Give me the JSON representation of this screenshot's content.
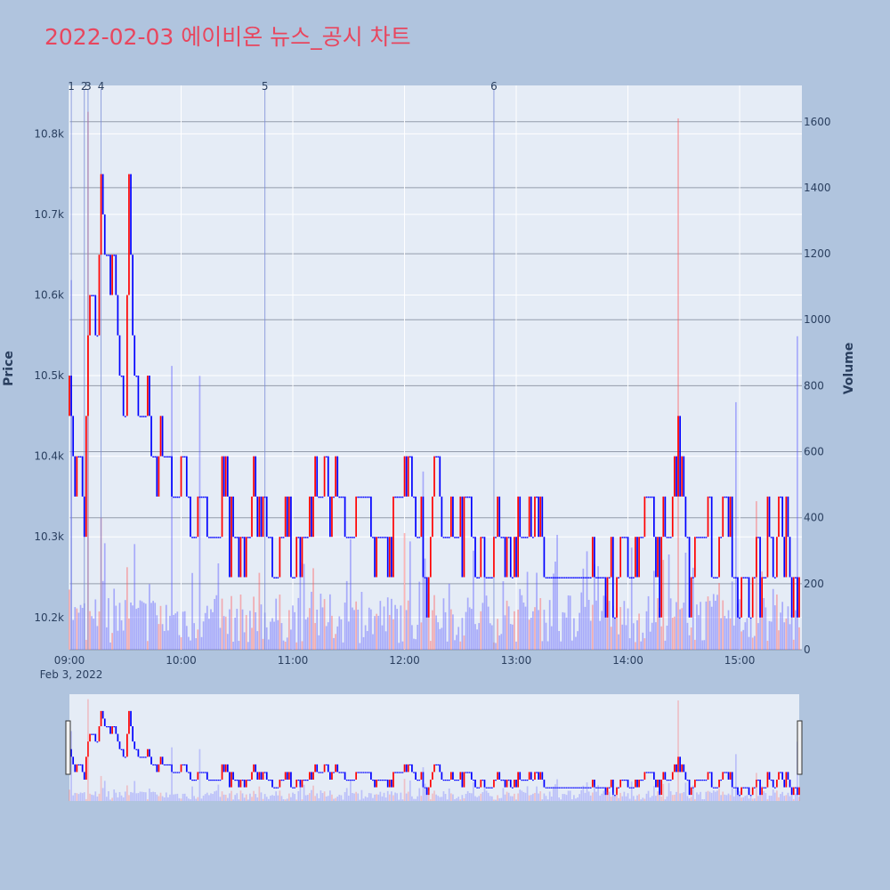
{
  "title": "2022-02-03 에이비온 뉴스_공시 차트",
  "colors": {
    "up": "#ff0000",
    "down": "#0000ff",
    "plot_bg": "#e5ecf6",
    "page_bg": "#b0c4de",
    "title": "#e8465e"
  },
  "chart_data": {
    "type": "candlestick",
    "title": "2022-02-03 에이비온 뉴스_공시 차트",
    "ylabel": "Price",
    "y2label": "Volume",
    "ylim": [
      10160,
      10860
    ],
    "y2lim": [
      0,
      1710
    ],
    "xlim": [
      0,
      392
    ],
    "x_start": "09:00",
    "x_date_label": "Feb 3, 2022",
    "y_ticks": [
      {
        "v": 10200,
        "l": "10.2k"
      },
      {
        "v": 10300,
        "l": "10.3k"
      },
      {
        "v": 10400,
        "l": "10.4k"
      },
      {
        "v": 10500,
        "l": "10.5k"
      },
      {
        "v": 10600,
        "l": "10.6k"
      },
      {
        "v": 10700,
        "l": "10.7k"
      },
      {
        "v": 10800,
        "l": "10.8k"
      }
    ],
    "y2_ticks": [
      {
        "v": 0,
        "l": "0"
      },
      {
        "v": 200,
        "l": "200"
      },
      {
        "v": 400,
        "l": "400"
      },
      {
        "v": 600,
        "l": "600"
      },
      {
        "v": 800,
        "l": "800"
      },
      {
        "v": 1000,
        "l": "1000"
      },
      {
        "v": 1200,
        "l": "1200"
      },
      {
        "v": 1400,
        "l": "1400"
      },
      {
        "v": 1600,
        "l": "1600"
      }
    ],
    "x_ticks": [
      {
        "v": 0,
        "l": "09:00"
      },
      {
        "v": 60,
        "l": "10:00"
      },
      {
        "v": 120,
        "l": "11:00"
      },
      {
        "v": 180,
        "l": "12:00"
      },
      {
        "v": 240,
        "l": "13:00"
      },
      {
        "v": 300,
        "l": "14:00"
      },
      {
        "v": 360,
        "l": "15:00"
      }
    ],
    "events": [
      {
        "label": "1",
        "x": 1
      },
      {
        "label": "2",
        "x": 8
      },
      {
        "label": "3",
        "x": 10
      },
      {
        "label": "4",
        "x": 17
      },
      {
        "label": "5",
        "x": 105
      },
      {
        "label": "6",
        "x": 228
      }
    ],
    "keypoints": [
      [
        0,
        10450
      ],
      [
        3,
        10400
      ],
      [
        6,
        10400
      ],
      [
        8,
        10300
      ],
      [
        10,
        10550
      ],
      [
        12,
        10600
      ],
      [
        15,
        10550
      ],
      [
        17,
        10700
      ],
      [
        19,
        10650
      ],
      [
        24,
        10650
      ],
      [
        27,
        10500
      ],
      [
        30,
        10450
      ],
      [
        32,
        10750
      ],
      [
        35,
        10500
      ],
      [
        38,
        10450
      ],
      [
        42,
        10450
      ],
      [
        45,
        10400
      ],
      [
        54,
        10400
      ],
      [
        57,
        10350
      ],
      [
        62,
        10400
      ],
      [
        65,
        10300
      ],
      [
        72,
        10350
      ],
      [
        75,
        10300
      ],
      [
        80,
        10300
      ],
      [
        84,
        10350
      ],
      [
        87,
        10300
      ],
      [
        97,
        10300
      ],
      [
        99,
        10400
      ],
      [
        101,
        10300
      ],
      [
        106,
        10300
      ],
      [
        110,
        10250
      ],
      [
        116,
        10300
      ],
      [
        121,
        10250
      ],
      [
        125,
        10300
      ],
      [
        132,
        10350
      ],
      [
        140,
        10350
      ],
      [
        145,
        10350
      ],
      [
        150,
        10300
      ],
      [
        158,
        10350
      ],
      [
        165,
        10300
      ],
      [
        172,
        10300
      ],
      [
        176,
        10350
      ],
      [
        182,
        10400
      ],
      [
        186,
        10300
      ],
      [
        193,
        10250
      ],
      [
        196,
        10400
      ],
      [
        200,
        10300
      ],
      [
        212,
        10300
      ],
      [
        220,
        10300
      ],
      [
        225,
        10250
      ],
      [
        230,
        10300
      ],
      [
        240,
        10300
      ],
      [
        250,
        10300
      ],
      [
        258,
        10250
      ],
      [
        265,
        10250
      ],
      [
        275,
        10250
      ],
      [
        289,
        10250
      ],
      [
        293,
        10200
      ],
      [
        296,
        10300
      ],
      [
        302,
        10250
      ],
      [
        306,
        10300
      ],
      [
        311,
        10350
      ],
      [
        315,
        10250
      ],
      [
        320,
        10300
      ],
      [
        326,
        10400
      ],
      [
        329,
        10350
      ],
      [
        333,
        10250
      ],
      [
        338,
        10300
      ],
      [
        340,
        10300
      ],
      [
        348,
        10250
      ],
      [
        352,
        10350
      ],
      [
        357,
        10250
      ],
      [
        360,
        10200
      ],
      [
        363,
        10250
      ],
      [
        366,
        10200
      ],
      [
        369,
        10300
      ],
      [
        372,
        10250
      ],
      [
        375,
        10350
      ],
      [
        378,
        10200
      ],
      [
        381,
        10350
      ],
      [
        392,
        10200
      ]
    ],
    "volume_spikes": [
      {
        "x": 1,
        "v": 1120
      },
      {
        "x": 10,
        "v": 1630
      },
      {
        "x": 17,
        "v": 400
      },
      {
        "x": 31,
        "v": 250
      },
      {
        "x": 35,
        "v": 320
      },
      {
        "x": 55,
        "v": 860
      },
      {
        "x": 70,
        "v": 830
      },
      {
        "x": 126,
        "v": 260
      },
      {
        "x": 190,
        "v": 540
      },
      {
        "x": 217,
        "v": 300
      },
      {
        "x": 327,
        "v": 1610
      },
      {
        "x": 358,
        "v": 750
      },
      {
        "x": 369,
        "v": 450
      },
      {
        "x": 391,
        "v": 950
      }
    ]
  }
}
